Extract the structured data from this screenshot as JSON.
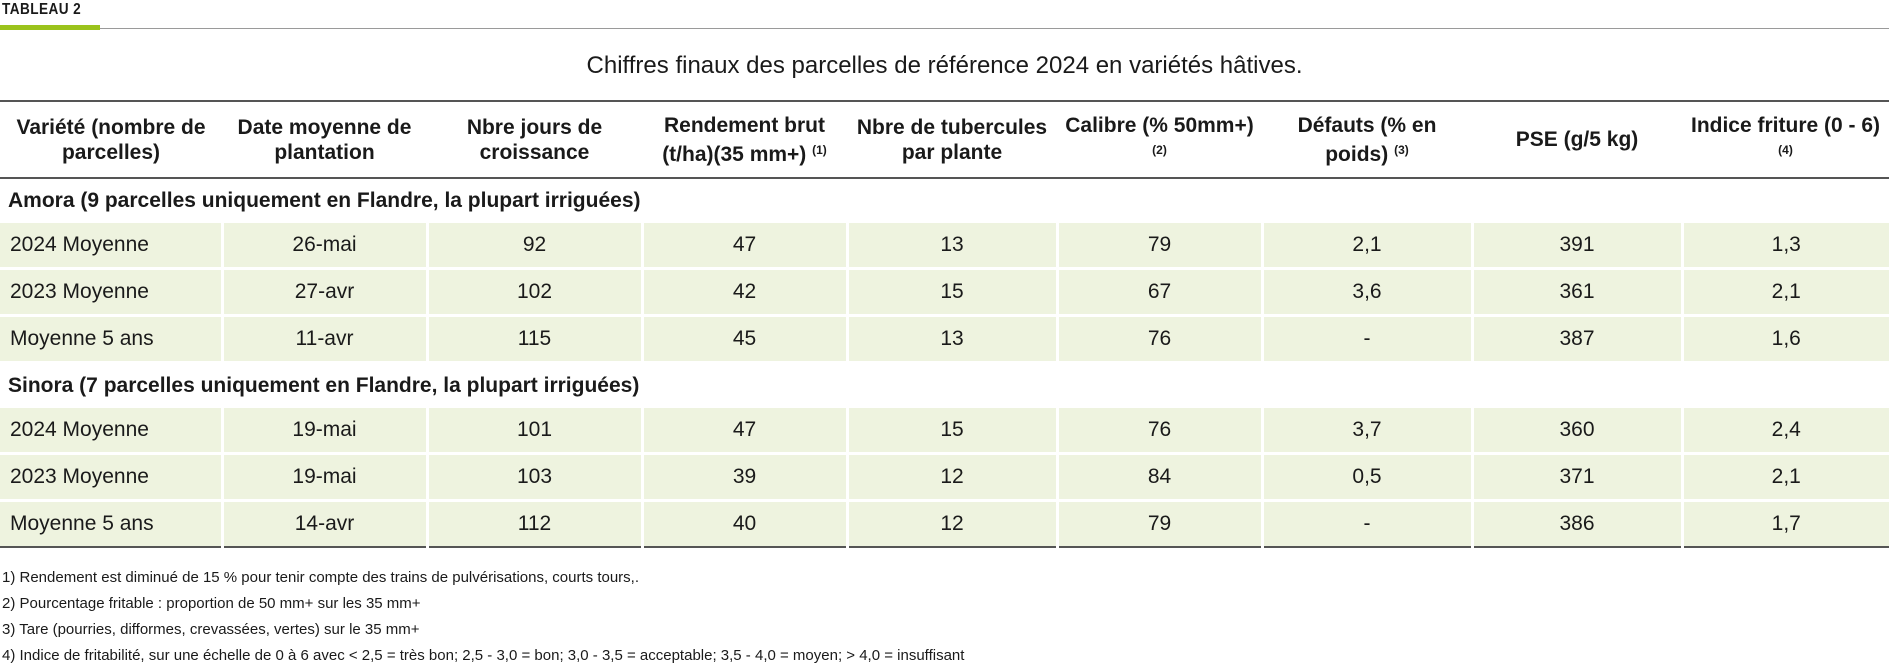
{
  "tag": "TABLEAU 2",
  "colors": {
    "accent": "#9bc31c",
    "row_bg": "#eef3df"
  },
  "title": "Chiffres finaux des parcelles de référence 2024 en variétés hâtives.",
  "headers": [
    {
      "text": "Variété (nombre de parcelles)",
      "sup": ""
    },
    {
      "text": "Date moyenne de plantation",
      "sup": ""
    },
    {
      "text": "Nbre jours de croissance",
      "sup": ""
    },
    {
      "text": "Rendement brut (t/ha)(35 mm+)",
      "sup": "(1)"
    },
    {
      "text": "Nbre de tubercules par plante",
      "sup": ""
    },
    {
      "text": "Calibre (% 50mm+)",
      "sup": "(2)"
    },
    {
      "text": "Défauts (% en poids)",
      "sup": "(3)"
    },
    {
      "text": "PSE (g/5 kg)",
      "sup": ""
    },
    {
      "text": "Indice friture (0 - 6)",
      "sup": "(4)"
    }
  ],
  "groups": [
    {
      "label": "Amora (9 parcelles uniquement en Flandre, la plupart irriguées)",
      "rows": [
        [
          "2024 Moyenne",
          "26-mai",
          "92",
          "47",
          "13",
          "79",
          "2,1",
          "391",
          "1,3"
        ],
        [
          "2023 Moyenne",
          "27-avr",
          "102",
          "42",
          "15",
          "67",
          "3,6",
          "361",
          "2,1"
        ],
        [
          "Moyenne 5 ans",
          "11-avr",
          "115",
          "45",
          "13",
          "76",
          "-",
          "387",
          "1,6"
        ]
      ]
    },
    {
      "label": "Sinora (7 parcelles uniquement en Flandre, la plupart irriguées)",
      "rows": [
        [
          "2024 Moyenne",
          "19-mai",
          "101",
          "47",
          "15",
          "76",
          "3,7",
          "360",
          "2,4"
        ],
        [
          "2023 Moyenne",
          "19-mai",
          "103",
          "39",
          "12",
          "84",
          "0,5",
          "371",
          "2,1"
        ],
        [
          "Moyenne 5 ans",
          "14-avr",
          "112",
          "40",
          "12",
          "79",
          "-",
          "386",
          "1,7"
        ]
      ]
    }
  ],
  "notes": [
    "1) Rendement est diminué de 15 % pour tenir compte des trains de pulvérisations, courts tours,.",
    "2) Pourcentage fritable : proportion de 50 mm+ sur les 35 mm+",
    "3) Tare (pourries, difformes, crevassées, vertes) sur le 35 mm+",
    "4) Indice de fritabilité, sur une échelle de 0 à 6 avec < 2,5 = très bon; 2,5 - 3,0 = bon; 3,0 - 3,5 = acceptable; 3,5 - 4,0 = moyen; > 4,0 = insuffisant"
  ]
}
